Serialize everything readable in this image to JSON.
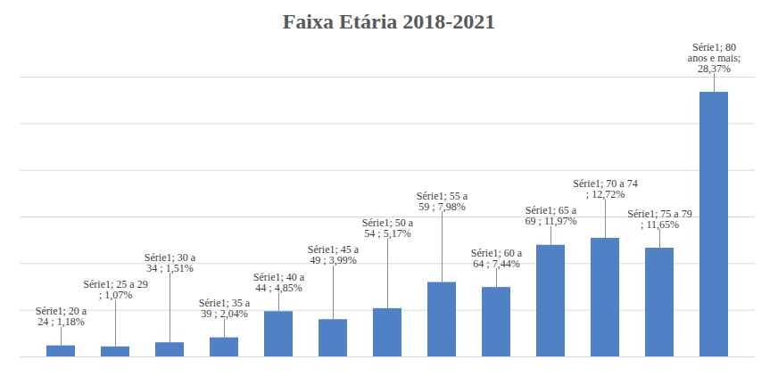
{
  "chart_data": {
    "type": "bar",
    "title": "Faixa Etária 2018-2021",
    "categories": [
      "20 a 24",
      "25 a 29",
      "30 a 34",
      "35 a 39",
      "40 a 44",
      "45 a 49",
      "50 a 54",
      "55 a 59",
      "60 a 64",
      "65 a 69",
      "70 a 74",
      "75 a 79",
      "80 anos e mais"
    ],
    "series": [
      {
        "name": "Série1",
        "color": "#5081c4",
        "values": [
          1.18,
          1.07,
          1.51,
          2.04,
          4.85,
          3.99,
          5.17,
          7.98,
          7.44,
          11.97,
          12.72,
          11.65,
          28.37
        ],
        "value_labels": [
          "Série1; 20 a 24 ; 1,18%",
          "Série1; 25 a 29 ; 1,07%",
          "Série1; 30 a 34 ; 1,51%",
          "Série1; 35 a 39 ; 2,04%",
          "Série1; 40 a 44 ; 4,85%",
          "Série1; 45 a 49 ; 3,99%",
          "Série1; 50 a 54 ; 5,17%",
          "Série1; 55 a 59 ; 7,98%",
          "Série1; 60 a 64 ; 7,44%",
          "Série1; 65 a 69 ; 11,97%",
          "Série1; 70 a 74 ; 12,72%",
          "Série1; 75 a 79 ; 11,65%",
          "Série1; 80 anos e mais; 28,37%"
        ]
      }
    ],
    "ylim": [
      0,
      30
    ],
    "yticks": [
      0,
      5,
      10,
      15,
      20,
      25,
      30
    ],
    "grid": true,
    "data_labels": true,
    "tick_labels": false
  }
}
